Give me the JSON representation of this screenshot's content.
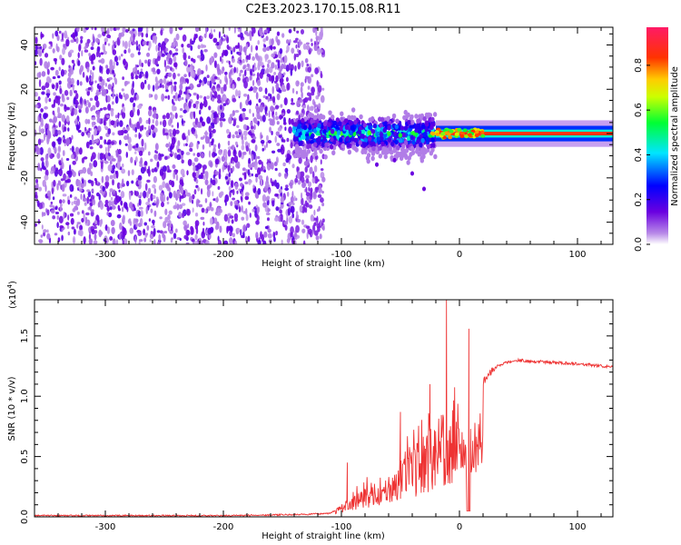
{
  "figure_title": "C2E3.2023.170.15.08.R11",
  "colors": {
    "snr_line": "#ee3333",
    "background": "#ffffff",
    "axis": "#000000"
  },
  "chart_data": [
    {
      "type": "heatmap",
      "title": "",
      "xlabel": "Height of straight line (km)",
      "ylabel": "Frequency (Hz)",
      "xlim": [
        -360,
        130
      ],
      "ylim": [
        -50,
        48
      ],
      "x_ticks": [
        -300,
        -200,
        -100,
        0,
        100
      ],
      "y_ticks": [
        -40,
        -20,
        0,
        20,
        40
      ],
      "colorbar": {
        "label": "Normalized spectral amplitude",
        "range": [
          0.0,
          0.97
        ],
        "ticks": [
          "0.0",
          "0.2",
          "0.4",
          "0.6",
          "0.8"
        ],
        "colormap": [
          "#ffffff",
          "#8a2be2",
          "#0000ff",
          "#00ffff",
          "#00ff00",
          "#ffff00",
          "#ff8000",
          "#ff0000",
          "#ff1493"
        ]
      },
      "regions": [
        {
          "x_range": [
            -360,
            -130
          ],
          "freq_range": [
            -50,
            48
          ],
          "amplitude": 0.08,
          "description": "noise"
        },
        {
          "x_range": [
            -140,
            -20
          ],
          "freq_center": 0,
          "freq_halfwidth": 8,
          "amplitude": 0.3
        },
        {
          "x_range": [
            -20,
            130
          ],
          "freq_center": 0,
          "freq_halfwidth": 4,
          "amplitude": 0.85
        }
      ]
    },
    {
      "type": "line",
      "title": "",
      "xlabel": "Height of straight line (km)",
      "ylabel": "SNR (10 * v/v)",
      "y_multiplier": "(x10",
      "y_multiplier_exp": "4",
      "y_multiplier_close": ")",
      "xlim": [
        -360,
        130
      ],
      "ylim": [
        0,
        1.8
      ],
      "x_ticks": [
        -300,
        -200,
        -100,
        0,
        100
      ],
      "y_ticks": [
        "0.0",
        "0.5",
        "1.0",
        "1.5"
      ],
      "series": [
        {
          "x": [
            -360,
            -300,
            -200,
            -130,
            -110,
            -100,
            -90,
            -80,
            -70,
            -60,
            -50,
            -40,
            -30,
            -20,
            -15,
            -10,
            -5,
            0,
            5,
            10,
            20,
            30,
            40,
            50,
            60,
            80,
            100,
            120,
            130
          ],
          "y": [
            0.01,
            0.01,
            0.01,
            0.02,
            0.03,
            0.08,
            0.15,
            0.2,
            0.25,
            0.3,
            0.38,
            0.45,
            0.55,
            0.62,
            0.7,
            0.75,
            0.8,
            0.85,
            0.92,
            1.0,
            1.12,
            1.24,
            1.28,
            1.3,
            1.29,
            1.28,
            1.27,
            1.25,
            1.24
          ],
          "spikes": [
            {
              "x": -11,
              "y": 1.8
            },
            {
              "x": 8,
              "y": 1.56
            },
            {
              "x": -25,
              "y": 1.1
            },
            {
              "x": -50,
              "y": 0.87
            },
            {
              "x": -95,
              "y": 0.45
            }
          ]
        }
      ]
    }
  ]
}
